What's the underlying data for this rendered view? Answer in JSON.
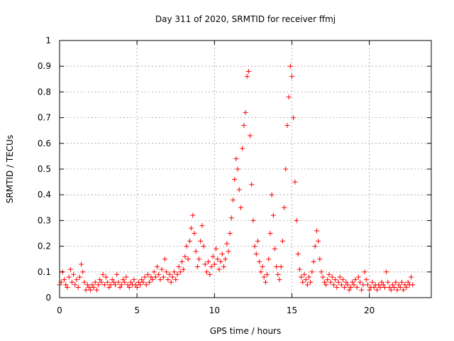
{
  "chart_data": {
    "type": "scatter",
    "title": "Day 311 of 2020, SRMTID for receiver ffmj",
    "xlabel": "GPS time / hours",
    "ylabel": "SRMTID / TECUs",
    "xlim": [
      0,
      24
    ],
    "ylim": [
      0,
      1
    ],
    "xticks": [
      "0",
      "5",
      "10",
      "15",
      "20"
    ],
    "yticks": [
      "0",
      "0.1",
      "0.2",
      "0.3",
      "0.4",
      "0.5",
      "0.6",
      "0.7",
      "0.8",
      "0.9",
      "1"
    ],
    "grid": true,
    "marker": "+",
    "marker_color": "#ff0000",
    "series": [
      {
        "name": "ffmj",
        "points": [
          [
            0.0,
            0.05
          ],
          [
            0.1,
            0.06
          ],
          [
            0.2,
            0.1
          ],
          [
            0.3,
            0.07
          ],
          [
            0.4,
            0.05
          ],
          [
            0.5,
            0.04
          ],
          [
            0.6,
            0.08
          ],
          [
            0.7,
            0.11
          ],
          [
            0.8,
            0.06
          ],
          [
            0.9,
            0.09
          ],
          [
            1.0,
            0.05
          ],
          [
            1.1,
            0.07
          ],
          [
            1.2,
            0.04
          ],
          [
            1.3,
            0.08
          ],
          [
            1.4,
            0.13
          ],
          [
            1.5,
            0.1
          ],
          [
            1.6,
            0.06
          ],
          [
            1.7,
            0.03
          ],
          [
            1.8,
            0.05
          ],
          [
            1.9,
            0.04
          ],
          [
            2.0,
            0.03
          ],
          [
            2.1,
            0.05
          ],
          [
            2.2,
            0.04
          ],
          [
            2.3,
            0.06
          ],
          [
            2.4,
            0.03
          ],
          [
            2.5,
            0.05
          ],
          [
            2.6,
            0.07
          ],
          [
            2.7,
            0.06
          ],
          [
            2.8,
            0.09
          ],
          [
            2.9,
            0.05
          ],
          [
            3.0,
            0.08
          ],
          [
            3.1,
            0.06
          ],
          [
            3.2,
            0.04
          ],
          [
            3.3,
            0.05
          ],
          [
            3.4,
            0.07
          ],
          [
            3.5,
            0.06
          ],
          [
            3.6,
            0.05
          ],
          [
            3.7,
            0.09
          ],
          [
            3.8,
            0.06
          ],
          [
            3.9,
            0.04
          ],
          [
            4.0,
            0.05
          ],
          [
            4.1,
            0.07
          ],
          [
            4.2,
            0.06
          ],
          [
            4.3,
            0.08
          ],
          [
            4.4,
            0.05
          ],
          [
            4.5,
            0.04
          ],
          [
            4.6,
            0.06
          ],
          [
            4.7,
            0.05
          ],
          [
            4.8,
            0.07
          ],
          [
            4.9,
            0.05
          ],
          [
            5.0,
            0.04
          ],
          [
            5.1,
            0.06
          ],
          [
            5.2,
            0.05
          ],
          [
            5.3,
            0.07
          ],
          [
            5.4,
            0.06
          ],
          [
            5.5,
            0.08
          ],
          [
            5.6,
            0.05
          ],
          [
            5.7,
            0.09
          ],
          [
            5.8,
            0.06
          ],
          [
            5.9,
            0.08
          ],
          [
            6.0,
            0.07
          ],
          [
            6.1,
            0.1
          ],
          [
            6.2,
            0.08
          ],
          [
            6.3,
            0.12
          ],
          [
            6.4,
            0.09
          ],
          [
            6.5,
            0.07
          ],
          [
            6.6,
            0.11
          ],
          [
            6.7,
            0.08
          ],
          [
            6.8,
            0.15
          ],
          [
            6.9,
            0.1
          ],
          [
            7.0,
            0.07
          ],
          [
            7.1,
            0.09
          ],
          [
            7.2,
            0.06
          ],
          [
            7.3,
            0.08
          ],
          [
            7.4,
            0.1
          ],
          [
            7.5,
            0.07
          ],
          [
            7.6,
            0.09
          ],
          [
            7.7,
            0.12
          ],
          [
            7.8,
            0.1
          ],
          [
            7.9,
            0.14
          ],
          [
            8.0,
            0.11
          ],
          [
            8.1,
            0.16
          ],
          [
            8.2,
            0.2
          ],
          [
            8.3,
            0.15
          ],
          [
            8.4,
            0.22
          ],
          [
            8.5,
            0.27
          ],
          [
            8.6,
            0.32
          ],
          [
            8.7,
            0.25
          ],
          [
            8.8,
            0.18
          ],
          [
            8.9,
            0.12
          ],
          [
            9.0,
            0.15
          ],
          [
            9.1,
            0.22
          ],
          [
            9.2,
            0.28
          ],
          [
            9.3,
            0.2
          ],
          [
            9.4,
            0.13
          ],
          [
            9.5,
            0.1
          ],
          [
            9.6,
            0.14
          ],
          [
            9.7,
            0.09
          ],
          [
            9.8,
            0.12
          ],
          [
            9.9,
            0.16
          ],
          [
            10.0,
            0.13
          ],
          [
            10.1,
            0.19
          ],
          [
            10.2,
            0.15
          ],
          [
            10.3,
            0.11
          ],
          [
            10.4,
            0.14
          ],
          [
            10.5,
            0.17
          ],
          [
            10.6,
            0.12
          ],
          [
            10.7,
            0.15
          ],
          [
            10.8,
            0.21
          ],
          [
            10.9,
            0.18
          ],
          [
            11.0,
            0.25
          ],
          [
            11.1,
            0.31
          ],
          [
            11.2,
            0.38
          ],
          [
            11.3,
            0.46
          ],
          [
            11.4,
            0.54
          ],
          [
            11.5,
            0.5
          ],
          [
            11.6,
            0.42
          ],
          [
            11.7,
            0.35
          ],
          [
            11.8,
            0.58
          ],
          [
            11.9,
            0.67
          ],
          [
            12.0,
            0.72
          ],
          [
            12.1,
            0.86
          ],
          [
            12.2,
            0.88
          ],
          [
            12.3,
            0.63
          ],
          [
            12.4,
            0.44
          ],
          [
            12.5,
            0.3
          ],
          [
            12.6,
            0.2
          ],
          [
            12.7,
            0.17
          ],
          [
            12.8,
            0.22
          ],
          [
            12.9,
            0.14
          ],
          [
            13.0,
            0.1
          ],
          [
            13.1,
            0.12
          ],
          [
            13.2,
            0.08
          ],
          [
            13.3,
            0.06
          ],
          [
            13.4,
            0.09
          ],
          [
            13.5,
            0.15
          ],
          [
            13.6,
            0.25
          ],
          [
            13.7,
            0.4
          ],
          [
            13.8,
            0.32
          ],
          [
            13.9,
            0.19
          ],
          [
            14.0,
            0.12
          ],
          [
            14.1,
            0.09
          ],
          [
            14.2,
            0.07
          ],
          [
            14.3,
            0.12
          ],
          [
            14.4,
            0.22
          ],
          [
            14.5,
            0.35
          ],
          [
            14.6,
            0.5
          ],
          [
            14.7,
            0.67
          ],
          [
            14.8,
            0.78
          ],
          [
            14.9,
            0.9
          ],
          [
            15.0,
            0.86
          ],
          [
            15.1,
            0.7
          ],
          [
            15.2,
            0.45
          ],
          [
            15.3,
            0.3
          ],
          [
            15.4,
            0.17
          ],
          [
            15.5,
            0.11
          ],
          [
            15.6,
            0.08
          ],
          [
            15.7,
            0.06
          ],
          [
            15.8,
            0.09
          ],
          [
            15.9,
            0.07
          ],
          [
            16.0,
            0.05
          ],
          [
            16.1,
            0.08
          ],
          [
            16.2,
            0.06
          ],
          [
            16.3,
            0.1
          ],
          [
            16.4,
            0.14
          ],
          [
            16.5,
            0.2
          ],
          [
            16.6,
            0.26
          ],
          [
            16.7,
            0.22
          ],
          [
            16.8,
            0.15
          ],
          [
            16.9,
            0.1
          ],
          [
            17.0,
            0.08
          ],
          [
            17.1,
            0.06
          ],
          [
            17.2,
            0.05
          ],
          [
            17.3,
            0.07
          ],
          [
            17.4,
            0.09
          ],
          [
            17.5,
            0.06
          ],
          [
            17.6,
            0.08
          ],
          [
            17.7,
            0.05
          ],
          [
            17.8,
            0.07
          ],
          [
            17.9,
            0.04
          ],
          [
            18.0,
            0.06
          ],
          [
            18.1,
            0.08
          ],
          [
            18.2,
            0.05
          ],
          [
            18.3,
            0.07
          ],
          [
            18.4,
            0.04
          ],
          [
            18.5,
            0.06
          ],
          [
            18.6,
            0.05
          ],
          [
            18.7,
            0.03
          ],
          [
            18.8,
            0.04
          ],
          [
            18.9,
            0.06
          ],
          [
            19.0,
            0.05
          ],
          [
            19.1,
            0.07
          ],
          [
            19.2,
            0.04
          ],
          [
            19.3,
            0.08
          ],
          [
            19.4,
            0.06
          ],
          [
            19.5,
            0.03
          ],
          [
            19.6,
            0.05
          ],
          [
            19.7,
            0.1
          ],
          [
            19.8,
            0.07
          ],
          [
            19.9,
            0.05
          ],
          [
            20.0,
            0.03
          ],
          [
            20.1,
            0.04
          ],
          [
            20.2,
            0.06
          ],
          [
            20.3,
            0.04
          ],
          [
            20.4,
            0.05
          ],
          [
            20.5,
            0.03
          ],
          [
            20.6,
            0.05
          ],
          [
            20.7,
            0.04
          ],
          [
            20.8,
            0.06
          ],
          [
            20.9,
            0.05
          ],
          [
            21.0,
            0.04
          ],
          [
            21.1,
            0.1
          ],
          [
            21.2,
            0.06
          ],
          [
            21.3,
            0.04
          ],
          [
            21.4,
            0.03
          ],
          [
            21.5,
            0.05
          ],
          [
            21.6,
            0.04
          ],
          [
            21.7,
            0.06
          ],
          [
            21.8,
            0.03
          ],
          [
            21.9,
            0.05
          ],
          [
            22.0,
            0.04
          ],
          [
            22.1,
            0.06
          ],
          [
            22.2,
            0.03
          ],
          [
            22.3,
            0.05
          ],
          [
            22.4,
            0.04
          ],
          [
            22.5,
            0.06
          ],
          [
            22.6,
            0.05
          ],
          [
            22.7,
            0.08
          ],
          [
            22.8,
            0.05
          ]
        ]
      }
    ]
  }
}
